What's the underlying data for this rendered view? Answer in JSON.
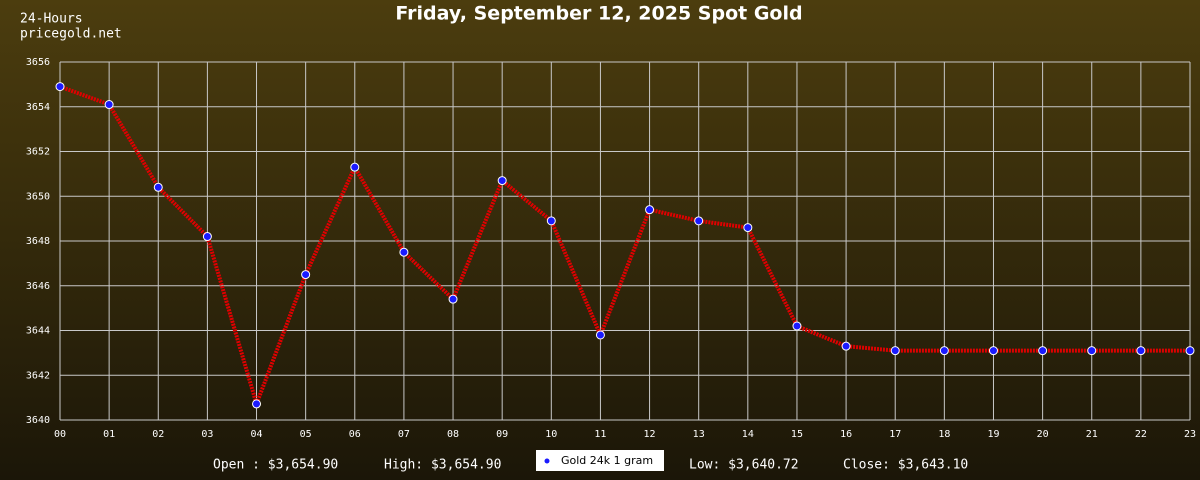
{
  "chart_data": {
    "type": "line",
    "title": "Friday, September 12, 2025 Spot Gold",
    "source_lines": [
      "24-Hours",
      "pricegold.net"
    ],
    "categories": [
      "00",
      "01",
      "02",
      "03",
      "04",
      "05",
      "06",
      "07",
      "08",
      "09",
      "10",
      "11",
      "12",
      "13",
      "14",
      "15",
      "16",
      "17",
      "18",
      "19",
      "20",
      "21",
      "22",
      "23"
    ],
    "series": [
      {
        "name": "Gold 24k 1 gram",
        "color": "#e00000",
        "marker_color": "#1a1aff",
        "values": [
          3654.9,
          3654.1,
          3650.4,
          3648.2,
          3640.72,
          3646.5,
          3651.3,
          3647.5,
          3645.4,
          3650.7,
          3648.9,
          3643.8,
          3649.4,
          3648.9,
          3648.6,
          3644.2,
          3643.3,
          3643.1,
          3643.1,
          3643.1,
          3643.1,
          3643.1,
          3643.1,
          3643.1
        ]
      }
    ],
    "ylim": [
      3640,
      3656
    ],
    "yticks": [
      3640,
      3642,
      3644,
      3646,
      3648,
      3650,
      3652,
      3654,
      3656
    ],
    "grid": true,
    "summary_left": [
      "Open : $3,654.90",
      "High: $3,654.90"
    ],
    "summary_right": [
      "Low: $3,640.72",
      "Close: $3,643.10"
    ]
  }
}
